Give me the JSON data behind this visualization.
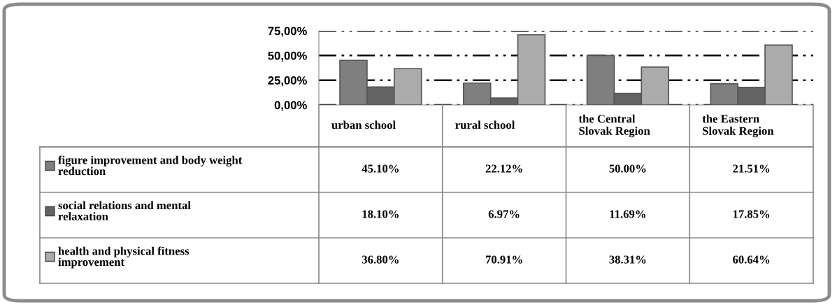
{
  "chart_data": {
    "type": "bar",
    "categories": [
      "urban school",
      "rural school",
      "the Central\nSlovak Region",
      "the Eastern\nSlovak Region"
    ],
    "series": [
      {
        "name": "figure improvement and body weight\nreduction",
        "color": "#7f7f7f",
        "values": [
          45.1,
          22.12,
          50.0,
          21.51
        ],
        "value_labels": [
          "45.10%",
          "22.12%",
          "50.00%",
          "21.51%"
        ]
      },
      {
        "name": "social relations and mental\nrelaxation",
        "color": "#636363",
        "values": [
          18.1,
          6.97,
          11.69,
          17.85
        ],
        "value_labels": [
          "18.10%",
          "6.97%",
          "11.69%",
          "17.85%"
        ]
      },
      {
        "name": "health and physical fitness\nimprovement",
        "color": "#ababab",
        "values": [
          36.8,
          70.91,
          38.31,
          60.64
        ],
        "value_labels": [
          "36.80%",
          "70.91%",
          "38.31%",
          "60.64%"
        ]
      }
    ],
    "ylim": [
      0,
      75
    ],
    "yticks": [
      {
        "value": 0,
        "label": "0,00%"
      },
      {
        "value": 25,
        "label": "25,00%"
      },
      {
        "value": 50,
        "label": "50,00%"
      },
      {
        "value": 75,
        "label": "75,00%"
      }
    ],
    "grid": "y",
    "line_style": "dashed",
    "legend": "bottom left"
  }
}
